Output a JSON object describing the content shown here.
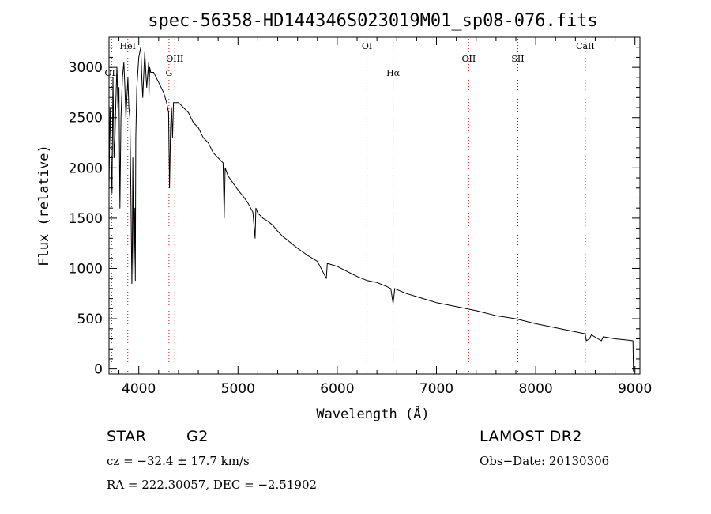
{
  "chart_data": {
    "type": "line",
    "title": "spec-56358-HD144346S023019M01_sp08-076.fits",
    "xlabel": "Wavelength (Å)",
    "ylabel": "Flux (relative)",
    "xlim": [
      3700,
      9050
    ],
    "ylim": [
      -50,
      3300
    ],
    "xticks": [
      4000,
      5000,
      6000,
      7000,
      8000,
      9000
    ],
    "yticks": [
      0,
      500,
      1000,
      1500,
      2000,
      2500,
      3000
    ],
    "grid": false,
    "series": [
      {
        "x": [
          3700,
          3710,
          3720,
          3730,
          3740,
          3750,
          3760,
          3770,
          3780,
          3790,
          3800,
          3810,
          3820,
          3835,
          3850,
          3860,
          3870,
          3880,
          3890,
          3900,
          3910,
          3920,
          3930,
          3935,
          3940,
          3950,
          3960,
          3965,
          3970,
          3980,
          4000,
          4020,
          4030,
          4040,
          4060,
          4080,
          4100,
          4102,
          4110,
          4120,
          4150,
          4200,
          4250,
          4280,
          4300,
          4310,
          4320,
          4330,
          4340,
          4350,
          4380,
          4400,
          4450,
          4500,
          4550,
          4600,
          4650,
          4700,
          4750,
          4800,
          4850,
          4861,
          4870,
          4900,
          4950,
          5000,
          5050,
          5100,
          5150,
          5172,
          5180,
          5200,
          5250,
          5300,
          5350,
          5400,
          5450,
          5500,
          5600,
          5700,
          5800,
          5890,
          5900,
          6000,
          6100,
          6200,
          6300,
          6400,
          6500,
          6540,
          6563,
          6580,
          6600,
          6700,
          6800,
          6900,
          7000,
          7200,
          7400,
          7600,
          7800,
          8000,
          8200,
          8400,
          8498,
          8510,
          8542,
          8560,
          8662,
          8680,
          8800,
          8900,
          8980,
          8985,
          9000
        ],
        "y": [
          1800,
          2600,
          2200,
          1750,
          2900,
          2100,
          2300,
          2700,
          3000,
          2600,
          2800,
          1600,
          2500,
          2900,
          3050,
          2800,
          2500,
          2700,
          2900,
          2600,
          2500,
          1800,
          850,
          1200,
          2100,
          950,
          1600,
          880,
          2300,
          2800,
          3100,
          3200,
          2900,
          2700,
          3150,
          2800,
          3050,
          2700,
          3000,
          2950,
          2950,
          2850,
          2750,
          2650,
          2550,
          1800,
          2400,
          2600,
          2300,
          2650,
          2650,
          2650,
          2600,
          2550,
          2450,
          2400,
          2300,
          2250,
          2150,
          2100,
          2050,
          1500,
          2000,
          1920,
          1850,
          1780,
          1720,
          1650,
          1560,
          1300,
          1600,
          1550,
          1500,
          1470,
          1430,
          1370,
          1320,
          1280,
          1200,
          1130,
          1070,
          900,
          1050,
          1020,
          970,
          920,
          880,
          860,
          820,
          800,
          650,
          800,
          790,
          750,
          720,
          690,
          660,
          620,
          580,
          530,
          500,
          450,
          410,
          370,
          350,
          280,
          300,
          340,
          280,
          320,
          300,
          290,
          280,
          -20,
          -20
        ]
      }
    ],
    "line_markers": [
      {
        "label": "OII",
        "x": 3727,
        "row": 2
      },
      {
        "label": "HeI",
        "x": 3889,
        "row": 0
      },
      {
        "label": "G",
        "x": 4304,
        "row": 2
      },
      {
        "label": "OIII",
        "x": 4363,
        "row": 1
      },
      {
        "label": "OI",
        "x": 6300,
        "row": 0
      },
      {
        "label": "Hα",
        "x": 6563,
        "row": 2
      },
      {
        "label": "OII",
        "x": 7325,
        "row": 1
      },
      {
        "label": "SII",
        "x": 7820,
        "row": 1
      },
      {
        "label": "CaII",
        "x": 8500,
        "row": 0
      }
    ]
  },
  "info": {
    "object_class": "STAR",
    "subclass": "G2",
    "cz": "cz = −32.4 ± 17.7 km/s",
    "coords": "RA = 222.30057, DEC =  −2.51902",
    "survey": "LAMOST DR2",
    "obs_date": "Obs−Date: 20130306"
  }
}
